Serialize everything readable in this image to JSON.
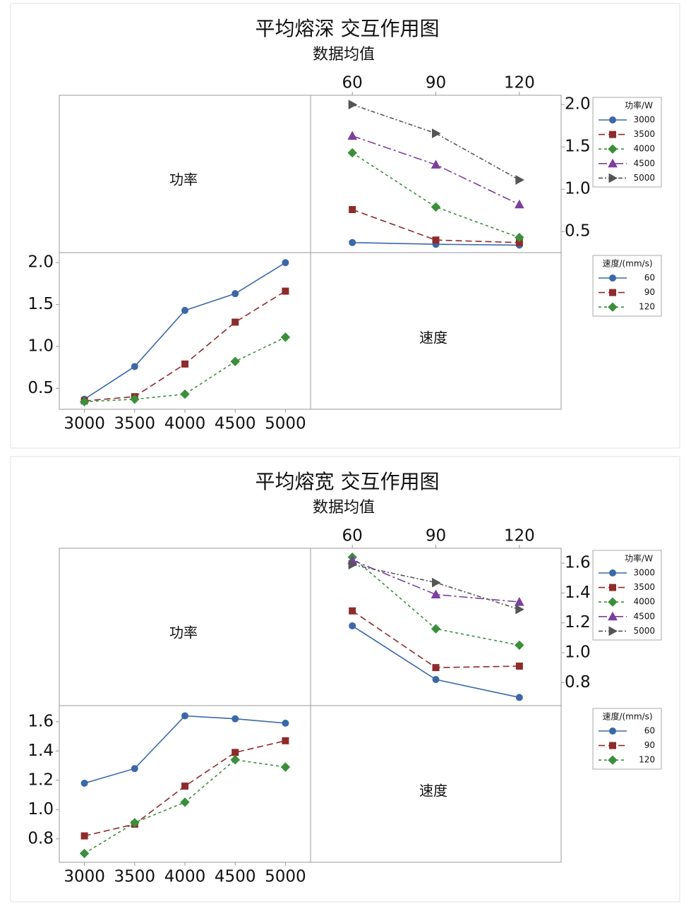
{
  "chart_data": [
    {
      "type": "interaction",
      "title": "平均熔深  交互作用图",
      "subtitle": "数据均值",
      "factor_labels": [
        "功率",
        "速度"
      ],
      "panels": [
        {
          "legend_title": "功率/W",
          "x": [
            60,
            90,
            120
          ],
          "xlim": [
            45,
            135
          ],
          "xticks": [
            60,
            90,
            120
          ],
          "ylim": [
            0.26,
            2.11
          ],
          "yticks": [
            0.5,
            {
              "value": 1,
              "label": "1.0"
            },
            1.5,
            {
              "value": 2,
              "label": "2.0"
            }
          ],
          "series": [
            {
              "name": "3000",
              "color": "#3a68a8",
              "marker": "circle",
              "line_style": "solid",
              "values": [
                0.37,
                0.35,
                0.34
              ]
            },
            {
              "name": "3500",
              "color": "#8e2b2b",
              "marker": "square",
              "line_style": "dashed",
              "values": [
                0.76,
                0.4,
                0.37
              ]
            },
            {
              "name": "4000",
              "color": "#3b8f3b",
              "marker": "diamond",
              "line_style": "dotted",
              "values": [
                1.43,
                0.79,
                0.43
              ]
            },
            {
              "name": "4500",
              "color": "#7b3f9e",
              "marker": "triangle",
              "line_style": "dashdot",
              "values": [
                1.63,
                1.29,
                0.82
              ]
            },
            {
              "name": "5000",
              "color": "#555555",
              "marker": "arrow",
              "line_style": "dashdotted",
              "values": [
                2.0,
                1.66,
                1.11
              ]
            }
          ]
        },
        {
          "legend_title": "速度/(mm/s)",
          "x": [
            3000,
            3500,
            4000,
            4500,
            5000
          ],
          "xlim": [
            2750,
            5250
          ],
          "xticks": [
            3000,
            3500,
            4000,
            4500,
            5000
          ],
          "ylim": [
            0.25,
            2.12
          ],
          "yticks": [
            0.5,
            {
              "value": 1,
              "label": "1.0"
            },
            1.5,
            {
              "value": 2,
              "label": "2.0"
            }
          ],
          "series": [
            {
              "name": "60",
              "color": "#3a68a8",
              "marker": "circle",
              "line_style": "solid",
              "values": [
                0.37,
                0.76,
                1.43,
                1.63,
                2.0
              ]
            },
            {
              "name": "90",
              "color": "#8e2b2b",
              "marker": "square",
              "line_style": "dashed",
              "values": [
                0.35,
                0.4,
                0.79,
                1.29,
                1.66
              ]
            },
            {
              "name": "120",
              "color": "#3b8f3b",
              "marker": "diamond",
              "line_style": "dotted",
              "values": [
                0.34,
                0.37,
                0.43,
                0.82,
                1.11
              ]
            }
          ]
        }
      ]
    },
    {
      "type": "interaction",
      "title": "平均熔宽  交互作用图",
      "subtitle": "数据均值",
      "factor_labels": [
        "功率",
        "速度"
      ],
      "panels": [
        {
          "legend_title": "功率/W",
          "x": [
            60,
            90,
            120
          ],
          "xlim": [
            45,
            135
          ],
          "xticks": [
            60,
            90,
            120
          ],
          "ylim": [
            0.65,
            1.7
          ],
          "yticks": [
            0.8,
            {
              "value": 1,
              "label": "1.0"
            },
            1.2,
            1.4,
            1.6
          ],
          "series": [
            {
              "name": "3000",
              "color": "#3a68a8",
              "marker": "circle",
              "line_style": "solid",
              "values": [
                1.18,
                0.82,
                0.7
              ]
            },
            {
              "name": "3500",
              "color": "#8e2b2b",
              "marker": "square",
              "line_style": "dashed",
              "values": [
                1.28,
                0.9,
                0.91
              ]
            },
            {
              "name": "4000",
              "color": "#3b8f3b",
              "marker": "diamond",
              "line_style": "dotted",
              "values": [
                1.64,
                1.16,
                1.05
              ]
            },
            {
              "name": "4500",
              "color": "#7b3f9e",
              "marker": "triangle",
              "line_style": "dashdot",
              "values": [
                1.62,
                1.39,
                1.34
              ]
            },
            {
              "name": "5000",
              "color": "#555555",
              "marker": "arrow",
              "line_style": "dashdotted",
              "values": [
                1.59,
                1.47,
                1.29
              ]
            }
          ]
        },
        {
          "legend_title": "速度/(mm/s)",
          "x": [
            3000,
            3500,
            4000,
            4500,
            5000
          ],
          "xlim": [
            2750,
            5250
          ],
          "xticks": [
            3000,
            3500,
            4000,
            4500,
            5000
          ],
          "ylim": [
            0.64,
            1.71
          ],
          "yticks": [
            0.8,
            {
              "value": 1,
              "label": "1.0"
            },
            1.2,
            1.4,
            1.6
          ],
          "series": [
            {
              "name": "60",
              "color": "#3a68a8",
              "marker": "circle",
              "line_style": "solid",
              "values": [
                1.18,
                1.28,
                1.64,
                1.62,
                1.59
              ]
            },
            {
              "name": "90",
              "color": "#8e2b2b",
              "marker": "square",
              "line_style": "dashed",
              "values": [
                0.82,
                0.9,
                1.16,
                1.39,
                1.47
              ]
            },
            {
              "name": "120",
              "color": "#3b8f3b",
              "marker": "diamond",
              "line_style": "dotted",
              "values": [
                0.7,
                0.91,
                1.05,
                1.34,
                1.29
              ]
            }
          ]
        }
      ]
    }
  ]
}
